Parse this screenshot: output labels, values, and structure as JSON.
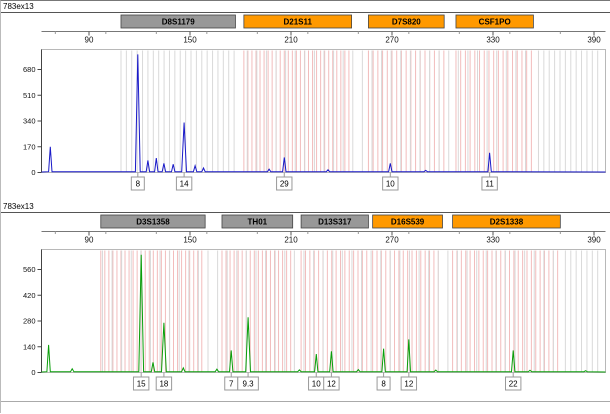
{
  "colors": {
    "trace_blue": "#1a1ac8",
    "trace_green": "#0a9e0a",
    "marker_gray": "#989898",
    "marker_orange": "#ff9900",
    "bin_pink": "#f2bcbc",
    "bin_gray": "#d9d9d9",
    "label_border": "#999999"
  },
  "chart_data": [
    {
      "type": "line",
      "panel": "top",
      "sample_name": "783ex13",
      "trace_color_name": "blue",
      "x_ticks": [
        90,
        150,
        210,
        270,
        330,
        390
      ],
      "x_range_bp": [
        62,
        396
      ],
      "y_ticks": [
        0,
        170,
        340,
        510,
        680
      ],
      "y_unit": "RFU",
      "legend_position": "none",
      "grid": "allele-bins",
      "markers": [
        {
          "name": "D8S1179",
          "header_color": "gray",
          "bp_start": 109,
          "bp_end": 177,
          "alleles": [
            {
              "label": "8",
              "bp": 119,
              "rfu": 780
            },
            {
              "label": "14",
              "bp": 146.5,
              "rfu": 330
            }
          ]
        },
        {
          "name": "D21S11",
          "header_color": "orange",
          "bp_start": 182,
          "bp_end": 246,
          "alleles": [
            {
              "label": "29",
              "bp": 206,
              "rfu": 100
            }
          ]
        },
        {
          "name": "D7S820",
          "header_color": "orange",
          "bp_start": 256,
          "bp_end": 301,
          "alleles": [
            {
              "label": "10",
              "bp": 269,
              "rfu": 60
            }
          ]
        },
        {
          "name": "CSF1PO",
          "header_color": "orange",
          "bp_start": 308,
          "bp_end": 354,
          "alleles": [
            {
              "label": "11",
              "bp": 328,
              "rfu": 130
            }
          ]
        }
      ],
      "unlabeled_peaks": [
        {
          "bp": 67,
          "rfu": 170
        },
        {
          "bp": 125,
          "rfu": 80
        },
        {
          "bp": 130,
          "rfu": 95
        },
        {
          "bp": 134.5,
          "rfu": 60
        },
        {
          "bp": 140,
          "rfu": 55
        },
        {
          "bp": 153,
          "rfu": 45
        },
        {
          "bp": 158,
          "rfu": 30
        },
        {
          "bp": 197,
          "rfu": 22
        },
        {
          "bp": 232,
          "rfu": 18
        },
        {
          "bp": 290,
          "rfu": 14
        }
      ],
      "bins": [
        {
          "from": 109,
          "to": 177,
          "step": 3.2,
          "color": "gray"
        },
        {
          "from": 182,
          "to": 246,
          "step": 2.4,
          "color": "pink"
        },
        {
          "from": 256,
          "to": 301,
          "step": 2.8,
          "color": "pink"
        },
        {
          "from": 308,
          "to": 354,
          "step": 2.8,
          "color": "pink"
        },
        {
          "from": 184,
          "to": 353,
          "step": 5.7,
          "color": "gray"
        },
        {
          "from": 357,
          "to": 394,
          "step": 3.2,
          "color": "gray"
        }
      ]
    },
    {
      "type": "line",
      "panel": "bottom",
      "sample_name": "783ex13",
      "trace_color_name": "green",
      "x_ticks": [
        90,
        150,
        210,
        270,
        330,
        390
      ],
      "x_range_bp": [
        62,
        396
      ],
      "y_ticks": [
        0,
        140,
        280,
        420,
        560
      ],
      "y_unit": "RFU",
      "legend_position": "none",
      "grid": "allele-bins",
      "markers": [
        {
          "name": "D3S1358",
          "header_color": "gray",
          "bp_start": 97,
          "bp_end": 159,
          "alleles": [
            {
              "label": "15",
              "bp": 121,
              "rfu": 640
            },
            {
              "label": "18",
              "bp": 134.5,
              "rfu": 270
            }
          ]
        },
        {
          "name": "TH01",
          "header_color": "gray",
          "bp_start": 169,
          "bp_end": 211,
          "alleles": [
            {
              "label": "7",
              "bp": 174.5,
              "rfu": 120
            },
            {
              "label": "9.3",
              "bp": 184.5,
              "rfu": 300
            }
          ]
        },
        {
          "name": "D13S317",
          "header_color": "gray",
          "bp_start": 216,
          "bp_end": 256,
          "alleles": [
            {
              "label": "10",
              "bp": 225,
              "rfu": 100
            },
            {
              "label": "12",
              "bp": 234,
              "rfu": 115
            }
          ]
        },
        {
          "name": "D16S539",
          "header_color": "orange",
          "bp_start": 258.5,
          "bp_end": 300,
          "alleles": [
            {
              "label": "8",
              "bp": 265,
              "rfu": 130
            },
            {
              "label": "12",
              "bp": 280,
              "rfu": 180
            }
          ]
        },
        {
          "name": "D2S1338",
          "header_color": "orange",
          "bp_start": 306,
          "bp_end": 370,
          "alleles": [
            {
              "label": "22",
              "bp": 342,
              "rfu": 120
            }
          ]
        }
      ],
      "unlabeled_peaks": [
        {
          "bp": 66,
          "rfu": 150
        },
        {
          "bp": 80,
          "rfu": 20
        },
        {
          "bp": 128,
          "rfu": 55
        },
        {
          "bp": 146,
          "rfu": 25
        },
        {
          "bp": 166,
          "rfu": 18
        },
        {
          "bp": 215,
          "rfu": 14
        },
        {
          "bp": 250,
          "rfu": 16
        },
        {
          "bp": 296,
          "rfu": 13
        },
        {
          "bp": 352,
          "rfu": 12
        },
        {
          "bp": 385,
          "rfu": 10
        }
      ],
      "bins": [
        {
          "from": 97,
          "to": 159,
          "step": 2.4,
          "color": "pink"
        },
        {
          "from": 169,
          "to": 211,
          "step": 2.4,
          "color": "pink"
        },
        {
          "from": 216,
          "to": 256,
          "step": 2.6,
          "color": "pink"
        },
        {
          "from": 258.5,
          "to": 300,
          "step": 2.6,
          "color": "pink"
        },
        {
          "from": 306,
          "to": 370,
          "step": 2.6,
          "color": "pink"
        },
        {
          "from": 98,
          "to": 369,
          "step": 5.7,
          "color": "gray"
        },
        {
          "from": 373,
          "to": 394,
          "step": 3.2,
          "color": "gray"
        }
      ]
    }
  ]
}
